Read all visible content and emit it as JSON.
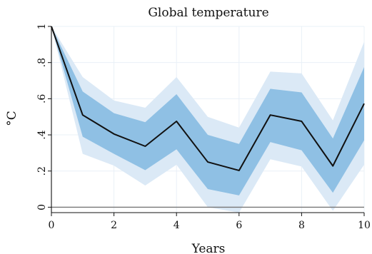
{
  "chart_data": {
    "type": "area",
    "title": "Global temperature",
    "xlabel": "Years",
    "ylabel": "°C",
    "xlim": [
      0,
      10
    ],
    "ylim": [
      -0.03,
      1.0
    ],
    "grid": true,
    "x_ticks": [
      0,
      2,
      4,
      6,
      8,
      10
    ],
    "x_tick_labels": [
      "0",
      "2",
      "4",
      "6",
      "8",
      "10"
    ],
    "y_ticks": [
      0,
      0.2,
      0.4,
      0.6,
      0.8,
      1.0
    ],
    "y_tick_labels": [
      "0",
      ".2",
      ".4",
      ".6",
      ".8",
      "1"
    ],
    "x": [
      0,
      1,
      2,
      3,
      4,
      5,
      6,
      7,
      8,
      9,
      10
    ],
    "series": [
      {
        "values": [
          1.0,
          0.51,
          0.405,
          0.337,
          0.475,
          0.25,
          0.203,
          0.51,
          0.475,
          0.228,
          0.573
        ]
      }
    ],
    "bands": [
      {
        "lower": [
          1.0,
          0.295,
          0.23,
          0.12,
          0.235,
          0.0,
          -0.03,
          0.265,
          0.225,
          -0.02,
          0.235
        ],
        "upper": [
          1.0,
          0.72,
          0.59,
          0.55,
          0.72,
          0.5,
          0.44,
          0.75,
          0.74,
          0.48,
          0.915
        ]
      },
      {
        "lower": [
          1.0,
          0.39,
          0.295,
          0.205,
          0.32,
          0.1,
          0.065,
          0.36,
          0.315,
          0.08,
          0.37
        ],
        "upper": [
          1.0,
          0.64,
          0.52,
          0.47,
          0.625,
          0.4,
          0.35,
          0.655,
          0.635,
          0.38,
          0.775
        ]
      }
    ],
    "colors": {
      "outer_band": "#dbe9f6",
      "inner_band": "#8fc0e4",
      "line": "#111111",
      "zero_line": "#777777"
    }
  }
}
